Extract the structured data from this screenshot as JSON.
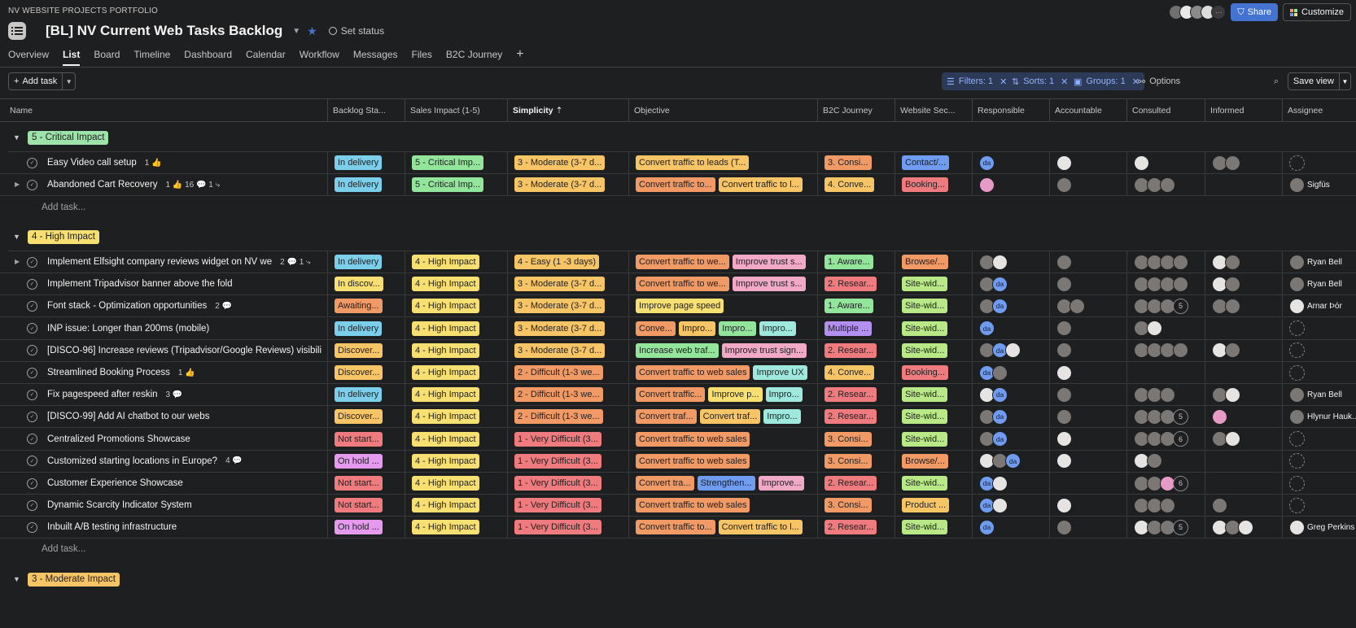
{
  "portfolio": "NV WEBSITE PROJECTS PORTFOLIO",
  "project_title": "[BL] NV Current Web Tasks Backlog",
  "set_status": "Set status",
  "share": "Share",
  "customize": "Customize",
  "tabs": [
    "Overview",
    "List",
    "Board",
    "Timeline",
    "Dashboard",
    "Calendar",
    "Workflow",
    "Messages",
    "Files",
    "B2C Journey"
  ],
  "add_task_btn": "Add task",
  "filters": "Filters: 1",
  "sorts": "Sorts: 1",
  "groups": "Groups: 1",
  "options": "Options",
  "save_view": "Save view",
  "columns": [
    "Name",
    "Backlog Sta...",
    "Sales Impact (1-5)",
    "Simplicity",
    "Objective",
    "B2C Journey",
    "Website Sec...",
    "Responsible",
    "Accountable",
    "Consulted",
    "Informed",
    "Assignee"
  ],
  "sections": [
    {
      "label": "5 - Critical Impact",
      "color": "#9ee3a9",
      "add_task": "Add task..."
    },
    {
      "label": "4 - High Impact",
      "color": "#f8df72",
      "add_task": "Add task..."
    },
    {
      "label": "3 - Moderate Impact",
      "color": "#f8c566"
    }
  ],
  "rows": [
    {
      "name": "Easy Video call setup",
      "meta": "1 👍",
      "backlog": {
        "t": "In delivery",
        "c": "#7ccfeb"
      },
      "sales": {
        "t": "5 - Critical Imp...",
        "c": "#93e59b"
      },
      "simp": {
        "t": "3 - Moderate (3-7 d...",
        "c": "#f8c566"
      },
      "obj": [
        {
          "t": "Convert traffic to leads (T...",
          "c": "#f8c566"
        }
      ],
      "b2c": {
        "t": "3. Consi...",
        "c": "#f19a66"
      },
      "web": {
        "t": "Contact/...",
        "c": "#6f9bf0"
      },
      "resp": [
        "da"
      ],
      "acc": [
        "w"
      ],
      "cons": [
        "w"
      ],
      "inf": [
        "g",
        "g"
      ],
      "asg": {
        "a": "empty",
        "n": ""
      }
    },
    {
      "name": "Abandoned Cart Recovery",
      "meta": "1 👍  16 💬  1 ⤷",
      "backlog": {
        "t": "In delivery",
        "c": "#7ccfeb"
      },
      "sales": {
        "t": "5 - Critical Imp...",
        "c": "#93e59b"
      },
      "simp": {
        "t": "3 - Moderate (3-7 d...",
        "c": "#f8c566"
      },
      "obj": [
        {
          "t": "Convert traffic to...",
          "c": "#f19a66"
        },
        {
          "t": "Convert traffic to l...",
          "c": "#f8c566"
        }
      ],
      "b2c": {
        "t": "4. Conve...",
        "c": "#f8c566"
      },
      "web": {
        "t": "Booking...",
        "c": "#f07b7e"
      },
      "resp": [
        "p"
      ],
      "acc": [
        "g"
      ],
      "cons": [
        "g",
        "g",
        "g"
      ],
      "inf": [],
      "asg": {
        "a": "g",
        "n": "Sigfús"
      }
    },
    {
      "name": "Implement Elfsight company reviews widget on NV we",
      "meta": "2 💬  1 ⤷",
      "backlog": {
        "t": "In delivery",
        "c": "#7ccfeb"
      },
      "sales": {
        "t": "4 - High Impact",
        "c": "#f8df72"
      },
      "simp": {
        "t": "4 - Easy (1 -3 days)",
        "c": "#f8c566"
      },
      "obj": [
        {
          "t": "Convert traffic to we...",
          "c": "#f19a66"
        },
        {
          "t": "Improve trust s...",
          "c": "#f1a9c6"
        }
      ],
      "b2c": {
        "t": "1. Aware...",
        "c": "#93e59b"
      },
      "web": {
        "t": "Browse/...",
        "c": "#f19a66"
      },
      "resp": [
        "g",
        "w"
      ],
      "acc": [
        "g"
      ],
      "cons": [
        "g",
        "g",
        "g",
        "g"
      ],
      "inf": [
        "w",
        "g"
      ],
      "asg": {
        "a": "g",
        "n": "Ryan Bell"
      }
    },
    {
      "name": "Implement Tripadvisor banner above the fold",
      "meta": "",
      "backlog": {
        "t": "In discov...",
        "c": "#f8df72"
      },
      "sales": {
        "t": "4 - High Impact",
        "c": "#f8df72"
      },
      "simp": {
        "t": "3 - Moderate (3-7 d...",
        "c": "#f8c566"
      },
      "obj": [
        {
          "t": "Convert traffic to we...",
          "c": "#f19a66"
        },
        {
          "t": "Improve trust s...",
          "c": "#f1a9c6"
        }
      ],
      "b2c": {
        "t": "2. Resear...",
        "c": "#f07b7e"
      },
      "web": {
        "t": "Site-wid...",
        "c": "#b8e986"
      },
      "resp": [
        "g",
        "da"
      ],
      "acc": [
        "g"
      ],
      "cons": [
        "g",
        "g",
        "g",
        "g"
      ],
      "inf": [
        "w",
        "g"
      ],
      "asg": {
        "a": "g",
        "n": "Ryan Bell"
      }
    },
    {
      "name": "Font stack - Optimization opportunities",
      "meta": "2 💬",
      "backlog": {
        "t": "Awaiting...",
        "c": "#f19a66"
      },
      "sales": {
        "t": "4 - High Impact",
        "c": "#f8df72"
      },
      "simp": {
        "t": "3 - Moderate (3-7 d...",
        "c": "#f8c566"
      },
      "obj": [
        {
          "t": "Improve page speed",
          "c": "#f8df72"
        }
      ],
      "b2c": {
        "t": "1. Aware...",
        "c": "#93e59b"
      },
      "web": {
        "t": "Site-wid...",
        "c": "#b8e986"
      },
      "resp": [
        "g",
        "da"
      ],
      "acc": [
        "g",
        "g"
      ],
      "cons": [
        "g",
        "g",
        "g",
        "5"
      ],
      "inf": [
        "g",
        "g"
      ],
      "asg": {
        "a": "w",
        "n": "Arnar Þór"
      }
    },
    {
      "name": "INP issue: Longer than 200ms (mobile)",
      "meta": "",
      "backlog": {
        "t": "In delivery",
        "c": "#7ccfeb"
      },
      "sales": {
        "t": "4 - High Impact",
        "c": "#f8df72"
      },
      "simp": {
        "t": "3 - Moderate (3-7 d...",
        "c": "#f8c566"
      },
      "obj": [
        {
          "t": "Conve...",
          "c": "#f19a66"
        },
        {
          "t": "Impro...",
          "c": "#f8c566"
        },
        {
          "t": "Impro...",
          "c": "#93e59b"
        },
        {
          "t": "Impro...",
          "c": "#9ee8dd"
        }
      ],
      "b2c": {
        "t": "Multiple ...",
        "c": "#b38ff0"
      },
      "web": {
        "t": "Site-wid...",
        "c": "#b8e986"
      },
      "resp": [
        "da"
      ],
      "acc": [
        "g"
      ],
      "cons": [
        "g",
        "w"
      ],
      "inf": [],
      "asg": {
        "a": "empty",
        "n": ""
      }
    },
    {
      "name": "[DISCO-96] Increase reviews (Tripadvisor/Google Reviews) visibili",
      "meta": "",
      "backlog": {
        "t": "Discover...",
        "c": "#f8c566"
      },
      "sales": {
        "t": "4 - High Impact",
        "c": "#f8df72"
      },
      "simp": {
        "t": "3 - Moderate (3-7 d...",
        "c": "#f8c566"
      },
      "obj": [
        {
          "t": "Increase web traf...",
          "c": "#93e59b"
        },
        {
          "t": "Improve trust sign...",
          "c": "#f1a9c6"
        }
      ],
      "b2c": {
        "t": "2. Resear...",
        "c": "#f07b7e"
      },
      "web": {
        "t": "Site-wid...",
        "c": "#b8e986"
      },
      "resp": [
        "g",
        "da",
        "w"
      ],
      "acc": [
        "g"
      ],
      "cons": [
        "g",
        "g",
        "g",
        "g"
      ],
      "inf": [
        "w",
        "g"
      ],
      "asg": {
        "a": "empty",
        "n": ""
      }
    },
    {
      "name": "Streamlined Booking Process",
      "meta": "1 👍",
      "backlog": {
        "t": "Discover...",
        "c": "#f8c566"
      },
      "sales": {
        "t": "4 - High Impact",
        "c": "#f8df72"
      },
      "simp": {
        "t": "2 - Difficult (1-3 we...",
        "c": "#f19a66"
      },
      "obj": [
        {
          "t": "Convert traffic to web sales",
          "c": "#f19a66"
        },
        {
          "t": "Improve UX",
          "c": "#9ee8dd"
        }
      ],
      "b2c": {
        "t": "4. Conve...",
        "c": "#f8c566"
      },
      "web": {
        "t": "Booking...",
        "c": "#f07b7e"
      },
      "resp": [
        "da",
        "g"
      ],
      "acc": [
        "w"
      ],
      "cons": [],
      "inf": [],
      "asg": {
        "a": "empty",
        "n": ""
      }
    },
    {
      "name": "Fix pagespeed after reskin",
      "meta": "3 💬",
      "backlog": {
        "t": "In delivery",
        "c": "#7ccfeb"
      },
      "sales": {
        "t": "4 - High Impact",
        "c": "#f8df72"
      },
      "simp": {
        "t": "2 - Difficult (1-3 we...",
        "c": "#f19a66"
      },
      "obj": [
        {
          "t": "Convert traffic...",
          "c": "#f19a66"
        },
        {
          "t": "Improve p...",
          "c": "#f8df72"
        },
        {
          "t": "Impro...",
          "c": "#9ee8dd"
        }
      ],
      "b2c": {
        "t": "2. Resear...",
        "c": "#f07b7e"
      },
      "web": {
        "t": "Site-wid...",
        "c": "#b8e986"
      },
      "resp": [
        "w",
        "da"
      ],
      "acc": [
        "g"
      ],
      "cons": [
        "g",
        "g",
        "g"
      ],
      "inf": [
        "g",
        "w"
      ],
      "asg": {
        "a": "g",
        "n": "Ryan Bell"
      }
    },
    {
      "name": "[DISCO-99] Add AI chatbot to our webs",
      "meta": "",
      "backlog": {
        "t": "Discover...",
        "c": "#f8c566"
      },
      "sales": {
        "t": "4 - High Impact",
        "c": "#f8df72"
      },
      "simp": {
        "t": "2 - Difficult (1-3 we...",
        "c": "#f19a66"
      },
      "obj": [
        {
          "t": "Convert traf...",
          "c": "#f19a66"
        },
        {
          "t": "Convert traf...",
          "c": "#f8c566"
        },
        {
          "t": "Impro...",
          "c": "#9ee8dd"
        }
      ],
      "b2c": {
        "t": "2. Resear...",
        "c": "#f07b7e"
      },
      "web": {
        "t": "Site-wid...",
        "c": "#b8e986"
      },
      "resp": [
        "g",
        "da"
      ],
      "acc": [
        "g"
      ],
      "cons": [
        "g",
        "g",
        "g",
        "5"
      ],
      "inf": [
        "p"
      ],
      "asg": {
        "a": "g",
        "n": "Hlynur Hauk..."
      }
    },
    {
      "name": "Centralized Promotions Showcase",
      "meta": "",
      "backlog": {
        "t": "Not start...",
        "c": "#f07b7e"
      },
      "sales": {
        "t": "4 - High Impact",
        "c": "#f8df72"
      },
      "simp": {
        "t": "1 - Very Difficult (3...",
        "c": "#f07b7e"
      },
      "obj": [
        {
          "t": "Convert traffic to web sales",
          "c": "#f19a66"
        }
      ],
      "b2c": {
        "t": "3. Consi...",
        "c": "#f19a66"
      },
      "web": {
        "t": "Site-wid...",
        "c": "#b8e986"
      },
      "resp": [
        "g",
        "da"
      ],
      "acc": [
        "w"
      ],
      "cons": [
        "g",
        "g",
        "g",
        "6"
      ],
      "inf": [
        "g",
        "w"
      ],
      "asg": {
        "a": "empty",
        "n": ""
      }
    },
    {
      "name": "Customized starting locations in Europe?",
      "meta": "4 💬",
      "backlog": {
        "t": "On hold ...",
        "c": "#e59aef"
      },
      "sales": {
        "t": "4 - High Impact",
        "c": "#f8df72"
      },
      "simp": {
        "t": "1 - Very Difficult (3...",
        "c": "#f07b7e"
      },
      "obj": [
        {
          "t": "Convert traffic to web sales",
          "c": "#f19a66"
        }
      ],
      "b2c": {
        "t": "3. Consi...",
        "c": "#f19a66"
      },
      "web": {
        "t": "Browse/...",
        "c": "#f19a66"
      },
      "resp": [
        "w",
        "g",
        "da"
      ],
      "acc": [
        "w"
      ],
      "cons": [
        "w",
        "g"
      ],
      "inf": [],
      "asg": {
        "a": "empty",
        "n": ""
      }
    },
    {
      "name": "Customer Experience Showcase",
      "meta": "",
      "backlog": {
        "t": "Not start...",
        "c": "#f07b7e"
      },
      "sales": {
        "t": "4 - High Impact",
        "c": "#f8df72"
      },
      "simp": {
        "t": "1 - Very Difficult (3...",
        "c": "#f07b7e"
      },
      "obj": [
        {
          "t": "Convert tra...",
          "c": "#f19a66"
        },
        {
          "t": "Strengthen...",
          "c": "#6f9bf0"
        },
        {
          "t": "Improve...",
          "c": "#f1a9c6"
        }
      ],
      "b2c": {
        "t": "2. Resear...",
        "c": "#f07b7e"
      },
      "web": {
        "t": "Site-wid...",
        "c": "#b8e986"
      },
      "resp": [
        "da",
        "w"
      ],
      "acc": [],
      "cons": [
        "g",
        "g",
        "p",
        "6"
      ],
      "inf": [],
      "asg": {
        "a": "empty",
        "n": ""
      }
    },
    {
      "name": "Dynamic Scarcity Indicator System",
      "meta": "",
      "backlog": {
        "t": "Not start...",
        "c": "#f07b7e"
      },
      "sales": {
        "t": "4 - High Impact",
        "c": "#f8df72"
      },
      "simp": {
        "t": "1 - Very Difficult (3...",
        "c": "#f07b7e"
      },
      "obj": [
        {
          "t": "Convert traffic to web sales",
          "c": "#f19a66"
        }
      ],
      "b2c": {
        "t": "3. Consi...",
        "c": "#f19a66"
      },
      "web": {
        "t": "Product ...",
        "c": "#f8c566"
      },
      "resp": [
        "da",
        "w"
      ],
      "acc": [
        "w"
      ],
      "cons": [
        "g",
        "g",
        "g"
      ],
      "inf": [
        "g"
      ],
      "asg": {
        "a": "empty",
        "n": ""
      }
    },
    {
      "name": "Inbuilt A/B testing infrastructure",
      "meta": "",
      "backlog": {
        "t": "On hold ...",
        "c": "#e59aef"
      },
      "sales": {
        "t": "4 - High Impact",
        "c": "#f8df72"
      },
      "simp": {
        "t": "1 - Very Difficult (3...",
        "c": "#f07b7e"
      },
      "obj": [
        {
          "t": "Convert traffic to...",
          "c": "#f19a66"
        },
        {
          "t": "Convert traffic to l...",
          "c": "#f8c566"
        }
      ],
      "b2c": {
        "t": "2. Resear...",
        "c": "#f07b7e"
      },
      "web": {
        "t": "Site-wid...",
        "c": "#b8e986"
      },
      "resp": [
        "da"
      ],
      "acc": [
        "g"
      ],
      "cons": [
        "w",
        "g",
        "g",
        "5"
      ],
      "inf": [
        "w",
        "g",
        "w"
      ],
      "asg": {
        "a": "w",
        "n": "Greg Perkins"
      }
    }
  ]
}
